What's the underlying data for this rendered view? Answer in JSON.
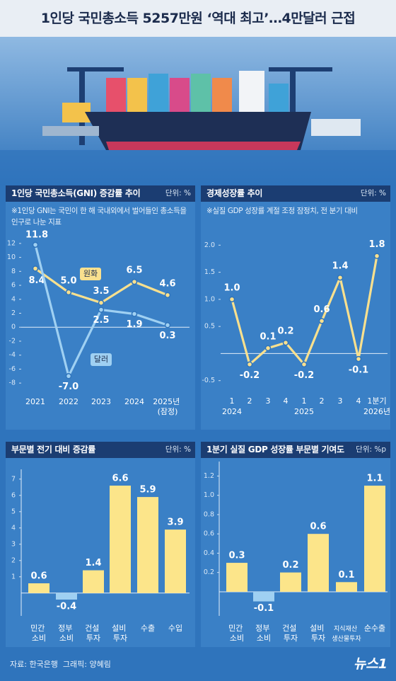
{
  "title": "1인당 국민총소득 5257만원 ‘역대 최고’…4만달러 근접",
  "source": "자료: 한국은행  그래픽: 양혜림",
  "logo": "뉴스1",
  "chart_data": [
    {
      "type": "line",
      "title": "1인당 국민총소득(GNI) 증감률 추이",
      "unit": "단위: %",
      "note": "※1인당 GNI는 국민이 한 해 국내외에서 벌어들인 총소득을 인구로 나눈 지표",
      "categories": [
        "2021",
        "2022",
        "2023",
        "2024",
        "2025년 (잠정)"
      ],
      "series": [
        {
          "name": "원화",
          "color": "#f9e08e",
          "values": [
            8.4,
            5.0,
            3.5,
            6.5,
            4.6
          ],
          "value_labels": [
            "8.4",
            "5.0",
            "3.5",
            "6.5",
            "4.6"
          ]
        },
        {
          "name": "달러",
          "color": "#9fd0f2",
          "values": [
            11.8,
            -7.0,
            2.5,
            1.9,
            0.3
          ],
          "value_labels": [
            "11.8",
            "-7.0",
            "2.5",
            "1.9",
            "0.3"
          ]
        }
      ],
      "ylim": [
        -9,
        13
      ],
      "yticks": [
        12,
        10,
        8,
        6,
        4,
        2,
        0,
        -2,
        -4,
        -6,
        -8
      ],
      "grid": false
    },
    {
      "type": "line",
      "title": "경제성장률 추이",
      "unit": "단위: %",
      "note": "※실질 GDP 성장률 계절 조정 잠정치, 전 분기 대비",
      "categories": [
        "1",
        "2",
        "3",
        "4",
        "1",
        "2",
        "3",
        "4",
        "1분기"
      ],
      "year_labels": [
        "2024",
        null,
        null,
        null,
        "2025",
        null,
        null,
        null,
        "2026년"
      ],
      "color": "#f9e08e",
      "values": [
        1.0,
        -0.2,
        0.1,
        0.2,
        -0.2,
        0.6,
        1.4,
        -0.1,
        1.8
      ],
      "value_labels": [
        "1.0",
        "-0.2",
        "0.1",
        "0.2",
        "-0.2",
        "0.6",
        "1.4",
        "-0.1",
        "1.8"
      ],
      "ylim": [
        -0.7,
        2.2
      ],
      "yticks": [
        {
          "value": 2,
          "label": "2.0"
        },
        1.5,
        {
          "value": 1,
          "label": "1.0"
        },
        0.5,
        -0.5
      ],
      "grid": false
    },
    {
      "type": "bar",
      "title": "부문별 전기 대비 증감률",
      "unit": "단위: %",
      "categories": [
        "민간 소비",
        "정부 소비",
        "건설 투자",
        "설비 투자",
        "수출",
        "수입"
      ],
      "values": [
        0.6,
        -0.4,
        1.4,
        6.6,
        5.9,
        3.9
      ],
      "color": "#fce58a",
      "negative_color": "#9fd0f2",
      "ylim": [
        -1.4,
        7.6
      ],
      "yticks": [
        1,
        2,
        3,
        4,
        5,
        6,
        7
      ],
      "grid": false
    },
    {
      "type": "bar",
      "title": "1분기 실질 GDP 성장률 부문별 기여도",
      "unit": "단위: %p",
      "categories": [
        "민간 소비",
        "정부 소비",
        "건설 투자",
        "설비 투자",
        "지식재산 생산물투자",
        "순수출"
      ],
      "values": [
        0.3,
        -0.1,
        0.2,
        0.6,
        0.1,
        1.1
      ],
      "color": "#fce58a",
      "negative_color": "#9fd0f2",
      "ylim": [
        -0.25,
        1.35
      ],
      "yticks": [
        0.2,
        0.4,
        0.6,
        0.8,
        {
          "value": 1,
          "label": "1.0"
        },
        1.2
      ],
      "grid": false
    }
  ]
}
